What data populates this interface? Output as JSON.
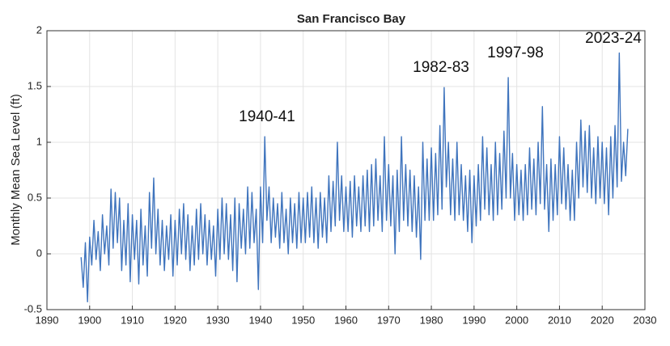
{
  "chart_data": {
    "type": "line",
    "title": "San Francisco Bay",
    "y_label": "Monthly Mean Sea Level (ft)",
    "annotations": [
      "1940-41",
      "1982-83",
      "1997-98",
      "2023-24"
    ],
    "xlim": [
      1890,
      2030
    ],
    "xticks": [
      1890,
      1900,
      1910,
      1920,
      1930,
      1940,
      1950,
      1960,
      1970,
      1980,
      1990,
      2000,
      2010,
      2020,
      2030
    ],
    "ylim": [
      -0.5,
      2
    ],
    "yticks": [
      -0.5,
      0,
      0.5,
      1,
      1.5,
      2
    ],
    "grid": true,
    "series": [
      {
        "name": "San Francisco Bay",
        "color": "#3f74bd",
        "x": [
          1898,
          1898.5,
          1899,
          1899.5,
          1900,
          1900.5,
          1901,
          1901.5,
          1902,
          1902.5,
          1903,
          1903.5,
          1904,
          1904.5,
          1905,
          1905.5,
          1906,
          1906.5,
          1907,
          1907.5,
          1908,
          1908.5,
          1909,
          1909.5,
          1910,
          1910.5,
          1911,
          1911.5,
          1912,
          1912.5,
          1913,
          1913.5,
          1914,
          1914.5,
          1915,
          1915.5,
          1916,
          1916.5,
          1917,
          1917.5,
          1918,
          1918.5,
          1919,
          1919.5,
          1920,
          1920.5,
          1921,
          1921.5,
          1922,
          1922.5,
          1923,
          1923.5,
          1924,
          1924.5,
          1925,
          1925.5,
          1926,
          1926.5,
          1927,
          1927.5,
          1928,
          1928.5,
          1929,
          1929.5,
          1930,
          1930.5,
          1931,
          1931.5,
          1932,
          1932.5,
          1933,
          1933.5,
          1934,
          1934.5,
          1935,
          1935.5,
          1936,
          1936.5,
          1937,
          1937.5,
          1938,
          1938.5,
          1939,
          1939.5,
          1940,
          1940.5,
          1941,
          1941.5,
          1942,
          1942.5,
          1943,
          1943.5,
          1944,
          1944.5,
          1945,
          1945.5,
          1946,
          1946.5,
          1947,
          1947.5,
          1948,
          1948.5,
          1949,
          1949.5,
          1950,
          1950.5,
          1951,
          1951.5,
          1952,
          1952.5,
          1953,
          1953.5,
          1954,
          1954.5,
          1955,
          1955.5,
          1956,
          1956.5,
          1957,
          1957.5,
          1958,
          1958.5,
          1959,
          1959.5,
          1960,
          1960.5,
          1961,
          1961.5,
          1962,
          1962.5,
          1963,
          1963.5,
          1964,
          1964.5,
          1965,
          1965.5,
          1966,
          1966.5,
          1967,
          1967.5,
          1968,
          1968.5,
          1969,
          1969.5,
          1970,
          1970.5,
          1971,
          1971.5,
          1972,
          1972.5,
          1973,
          1973.5,
          1974,
          1974.5,
          1975,
          1975.5,
          1976,
          1976.5,
          1977,
          1977.5,
          1978,
          1978.5,
          1979,
          1979.5,
          1980,
          1980.5,
          1981,
          1981.5,
          1982,
          1982.5,
          1983,
          1983.5,
          1984,
          1984.5,
          1985,
          1985.5,
          1986,
          1986.5,
          1987,
          1987.5,
          1988,
          1988.5,
          1989,
          1989.5,
          1990,
          1990.5,
          1991,
          1991.5,
          1992,
          1992.5,
          1993,
          1993.5,
          1994,
          1994.5,
          1995,
          1995.5,
          1996,
          1996.5,
          1997,
          1997.5,
          1998,
          1998.5,
          1999,
          1999.5,
          2000,
          2000.5,
          2001,
          2001.5,
          2002,
          2002.5,
          2003,
          2003.5,
          2004,
          2004.5,
          2005,
          2005.5,
          2006,
          2006.5,
          2007,
          2007.5,
          2008,
          2008.5,
          2009,
          2009.5,
          2010,
          2010.5,
          2011,
          2011.5,
          2012,
          2012.5,
          2013,
          2013.5,
          2014,
          2014.5,
          2015,
          2015.5,
          2016,
          2016.5,
          2017,
          2017.5,
          2018,
          2018.5,
          2019,
          2019.5,
          2020,
          2020.5,
          2021,
          2021.5,
          2022,
          2022.5,
          2023,
          2023.5,
          2024,
          2024.5,
          2025,
          2025.5,
          2026
        ],
        "values": [
          -0.03,
          -0.3,
          0.1,
          -0.43,
          0.15,
          -0.1,
          0.3,
          -0.05,
          0.2,
          -0.15,
          0.35,
          0.0,
          0.25,
          -0.1,
          0.58,
          0.05,
          0.55,
          0.1,
          0.5,
          -0.15,
          0.3,
          -0.1,
          0.45,
          -0.25,
          0.35,
          -0.05,
          0.3,
          -0.27,
          0.4,
          -0.1,
          0.25,
          -0.2,
          0.55,
          0.05,
          0.68,
          0.0,
          0.4,
          -0.1,
          0.3,
          -0.15,
          0.25,
          -0.05,
          0.35,
          -0.2,
          0.3,
          -0.1,
          0.4,
          0.0,
          0.45,
          -0.05,
          0.35,
          -0.15,
          0.25,
          -0.1,
          0.4,
          -0.05,
          0.45,
          0.0,
          0.35,
          -0.1,
          0.3,
          -0.05,
          0.25,
          -0.2,
          0.4,
          -0.05,
          0.5,
          0.0,
          0.45,
          -0.05,
          0.35,
          -0.15,
          0.5,
          -0.25,
          0.45,
          0.05,
          0.4,
          0.0,
          0.6,
          0.05,
          0.55,
          0.1,
          0.4,
          -0.32,
          0.6,
          0.1,
          1.05,
          0.3,
          0.6,
          0.1,
          0.5,
          0.15,
          0.45,
          0.05,
          0.55,
          0.1,
          0.4,
          0.0,
          0.5,
          0.1,
          0.45,
          0.05,
          0.55,
          0.1,
          0.5,
          0.1,
          0.55,
          0.15,
          0.6,
          0.1,
          0.5,
          0.05,
          0.55,
          0.15,
          0.5,
          0.1,
          0.7,
          0.2,
          0.65,
          0.25,
          1.0,
          0.3,
          0.7,
          0.2,
          0.6,
          0.2,
          0.65,
          0.15,
          0.7,
          0.25,
          0.6,
          0.2,
          0.7,
          0.25,
          0.75,
          0.2,
          0.8,
          0.25,
          0.85,
          0.3,
          0.7,
          0.2,
          1.05,
          0.3,
          0.8,
          0.25,
          0.7,
          0.0,
          0.75,
          0.2,
          1.05,
          0.3,
          0.8,
          0.25,
          0.75,
          0.2,
          0.7,
          0.15,
          0.6,
          -0.05,
          1.0,
          0.3,
          0.85,
          0.3,
          0.95,
          0.3,
          0.9,
          0.35,
          1.15,
          0.4,
          1.49,
          0.6,
          1.0,
          0.35,
          0.85,
          0.3,
          1.0,
          0.35,
          0.8,
          0.3,
          0.7,
          0.2,
          0.75,
          0.1,
          0.7,
          0.25,
          0.8,
          0.3,
          1.05,
          0.4,
          0.95,
          0.35,
          0.8,
          0.3,
          1.0,
          0.35,
          0.9,
          0.4,
          1.1,
          0.5,
          1.58,
          0.5,
          0.9,
          0.3,
          0.8,
          0.35,
          0.75,
          0.3,
          0.8,
          0.35,
          0.95,
          0.4,
          0.85,
          0.35,
          1.0,
          0.45,
          1.32,
          0.4,
          0.8,
          0.2,
          0.85,
          0.3,
          0.8,
          0.35,
          1.05,
          0.45,
          0.95,
          0.4,
          0.8,
          0.3,
          0.75,
          0.3,
          1.0,
          0.5,
          1.2,
          0.6,
          1.1,
          0.55,
          1.15,
          0.5,
          0.95,
          0.45,
          1.05,
          0.5,
          1.0,
          0.45,
          0.95,
          0.35,
          1.05,
          0.5,
          1.15,
          0.6,
          1.8,
          0.65,
          1.0,
          0.7,
          1.12
        ]
      }
    ]
  }
}
